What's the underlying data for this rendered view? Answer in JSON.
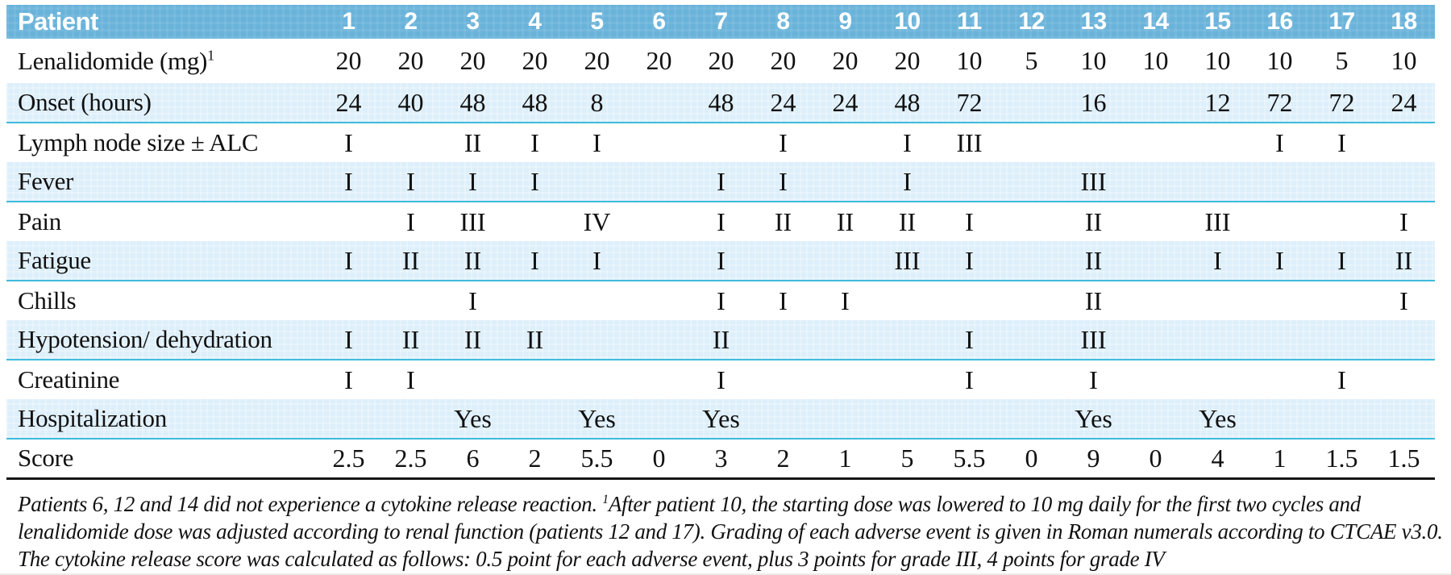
{
  "table": {
    "header": {
      "label": "Patient",
      "columns": [
        "1",
        "2",
        "3",
        "4",
        "5",
        "6",
        "7",
        "8",
        "9",
        "10",
        "11",
        "12",
        "13",
        "14",
        "15",
        "16",
        "17",
        "18"
      ]
    },
    "rows": [
      {
        "label": "Lenalidomide (mg)",
        "label_sup": "1",
        "values": [
          "20",
          "20",
          "20",
          "20",
          "20",
          "20",
          "20",
          "20",
          "20",
          "20",
          "10",
          "5",
          "10",
          "10",
          "10",
          "10",
          "5",
          "10"
        ]
      },
      {
        "label": "Onset (hours)",
        "values": [
          "24",
          "40",
          "48",
          "48",
          "8",
          "",
          "48",
          "24",
          "24",
          "48",
          "72",
          "",
          "16",
          "",
          "12",
          "72",
          "72",
          "24"
        ]
      },
      {
        "label": "Lymph node size ± ALC",
        "values": [
          "I",
          "",
          "II",
          "I",
          "I",
          "",
          "",
          "I",
          "",
          "I",
          "III",
          "",
          "",
          "",
          "",
          "I",
          "I",
          ""
        ]
      },
      {
        "label": "Fever",
        "values": [
          "I",
          "I",
          "I",
          "I",
          "",
          "",
          "I",
          "I",
          "",
          "I",
          "",
          "",
          "III",
          "",
          "",
          "",
          "",
          ""
        ]
      },
      {
        "label": "Pain",
        "values": [
          "",
          "I",
          "III",
          "",
          "IV",
          "",
          "I",
          "II",
          "II",
          "II",
          "I",
          "",
          "II",
          "",
          "III",
          "",
          "",
          "I"
        ]
      },
      {
        "label": "Fatigue",
        "values": [
          "I",
          "II",
          "II",
          "I",
          "I",
          "",
          "I",
          "",
          "",
          "III",
          "I",
          "",
          "II",
          "",
          "I",
          "I",
          "I",
          "II"
        ]
      },
      {
        "label": "Chills",
        "values": [
          "",
          "",
          "I",
          "",
          "",
          "",
          "I",
          "I",
          "I",
          "",
          "",
          "",
          "II",
          "",
          "",
          "",
          "",
          "I"
        ]
      },
      {
        "label": "Hypotension/ dehydration",
        "values": [
          "I",
          "II",
          "II",
          "II",
          "",
          "",
          "II",
          "",
          "",
          "",
          "I",
          "",
          "III",
          "",
          "",
          "",
          "",
          ""
        ]
      },
      {
        "label": "Creatinine",
        "values": [
          "I",
          "I",
          "",
          "",
          "",
          "",
          "I",
          "",
          "",
          "",
          "I",
          "",
          "I",
          "",
          "",
          "",
          "I",
          ""
        ]
      },
      {
        "label": "Hospitalization",
        "values": [
          "",
          "",
          "Yes",
          "",
          "Yes",
          "",
          "Yes",
          "",
          "",
          "",
          "",
          "",
          "Yes",
          "",
          "Yes",
          "",
          "",
          ""
        ]
      },
      {
        "label": "Score",
        "values": [
          "2.5",
          "2.5",
          "6",
          "2",
          "5.5",
          "0",
          "3",
          "2",
          "1",
          "5",
          "5.5",
          "0",
          "9",
          "0",
          "4",
          "1",
          "1.5",
          "1.5"
        ]
      }
    ]
  },
  "footnote": {
    "part1": "Patients 6, 12 and 14 did not experience a cytokine release reaction. ",
    "sup_marker": "1",
    "part2": "After patient 10, the starting dose was lowered to 10 mg daily for the first two cycles and lenalidomide dose was adjusted according to renal function (patients 12 and 17). Grading of each adverse event is given in Roman numerals according to CTCAE v3.0. The cytokine release score was calculated as follows: 0.5 point for each adverse event, plus 3 points for grade III, 4 points for grade IV"
  },
  "colors": {
    "header_bg": "#69b3da",
    "header_text": "#ffffff",
    "shaded_row_bg": "#ddeffa",
    "row_divider": "#3fbcdc",
    "table_bottom_border": "#161616",
    "body_text": "#111111"
  }
}
